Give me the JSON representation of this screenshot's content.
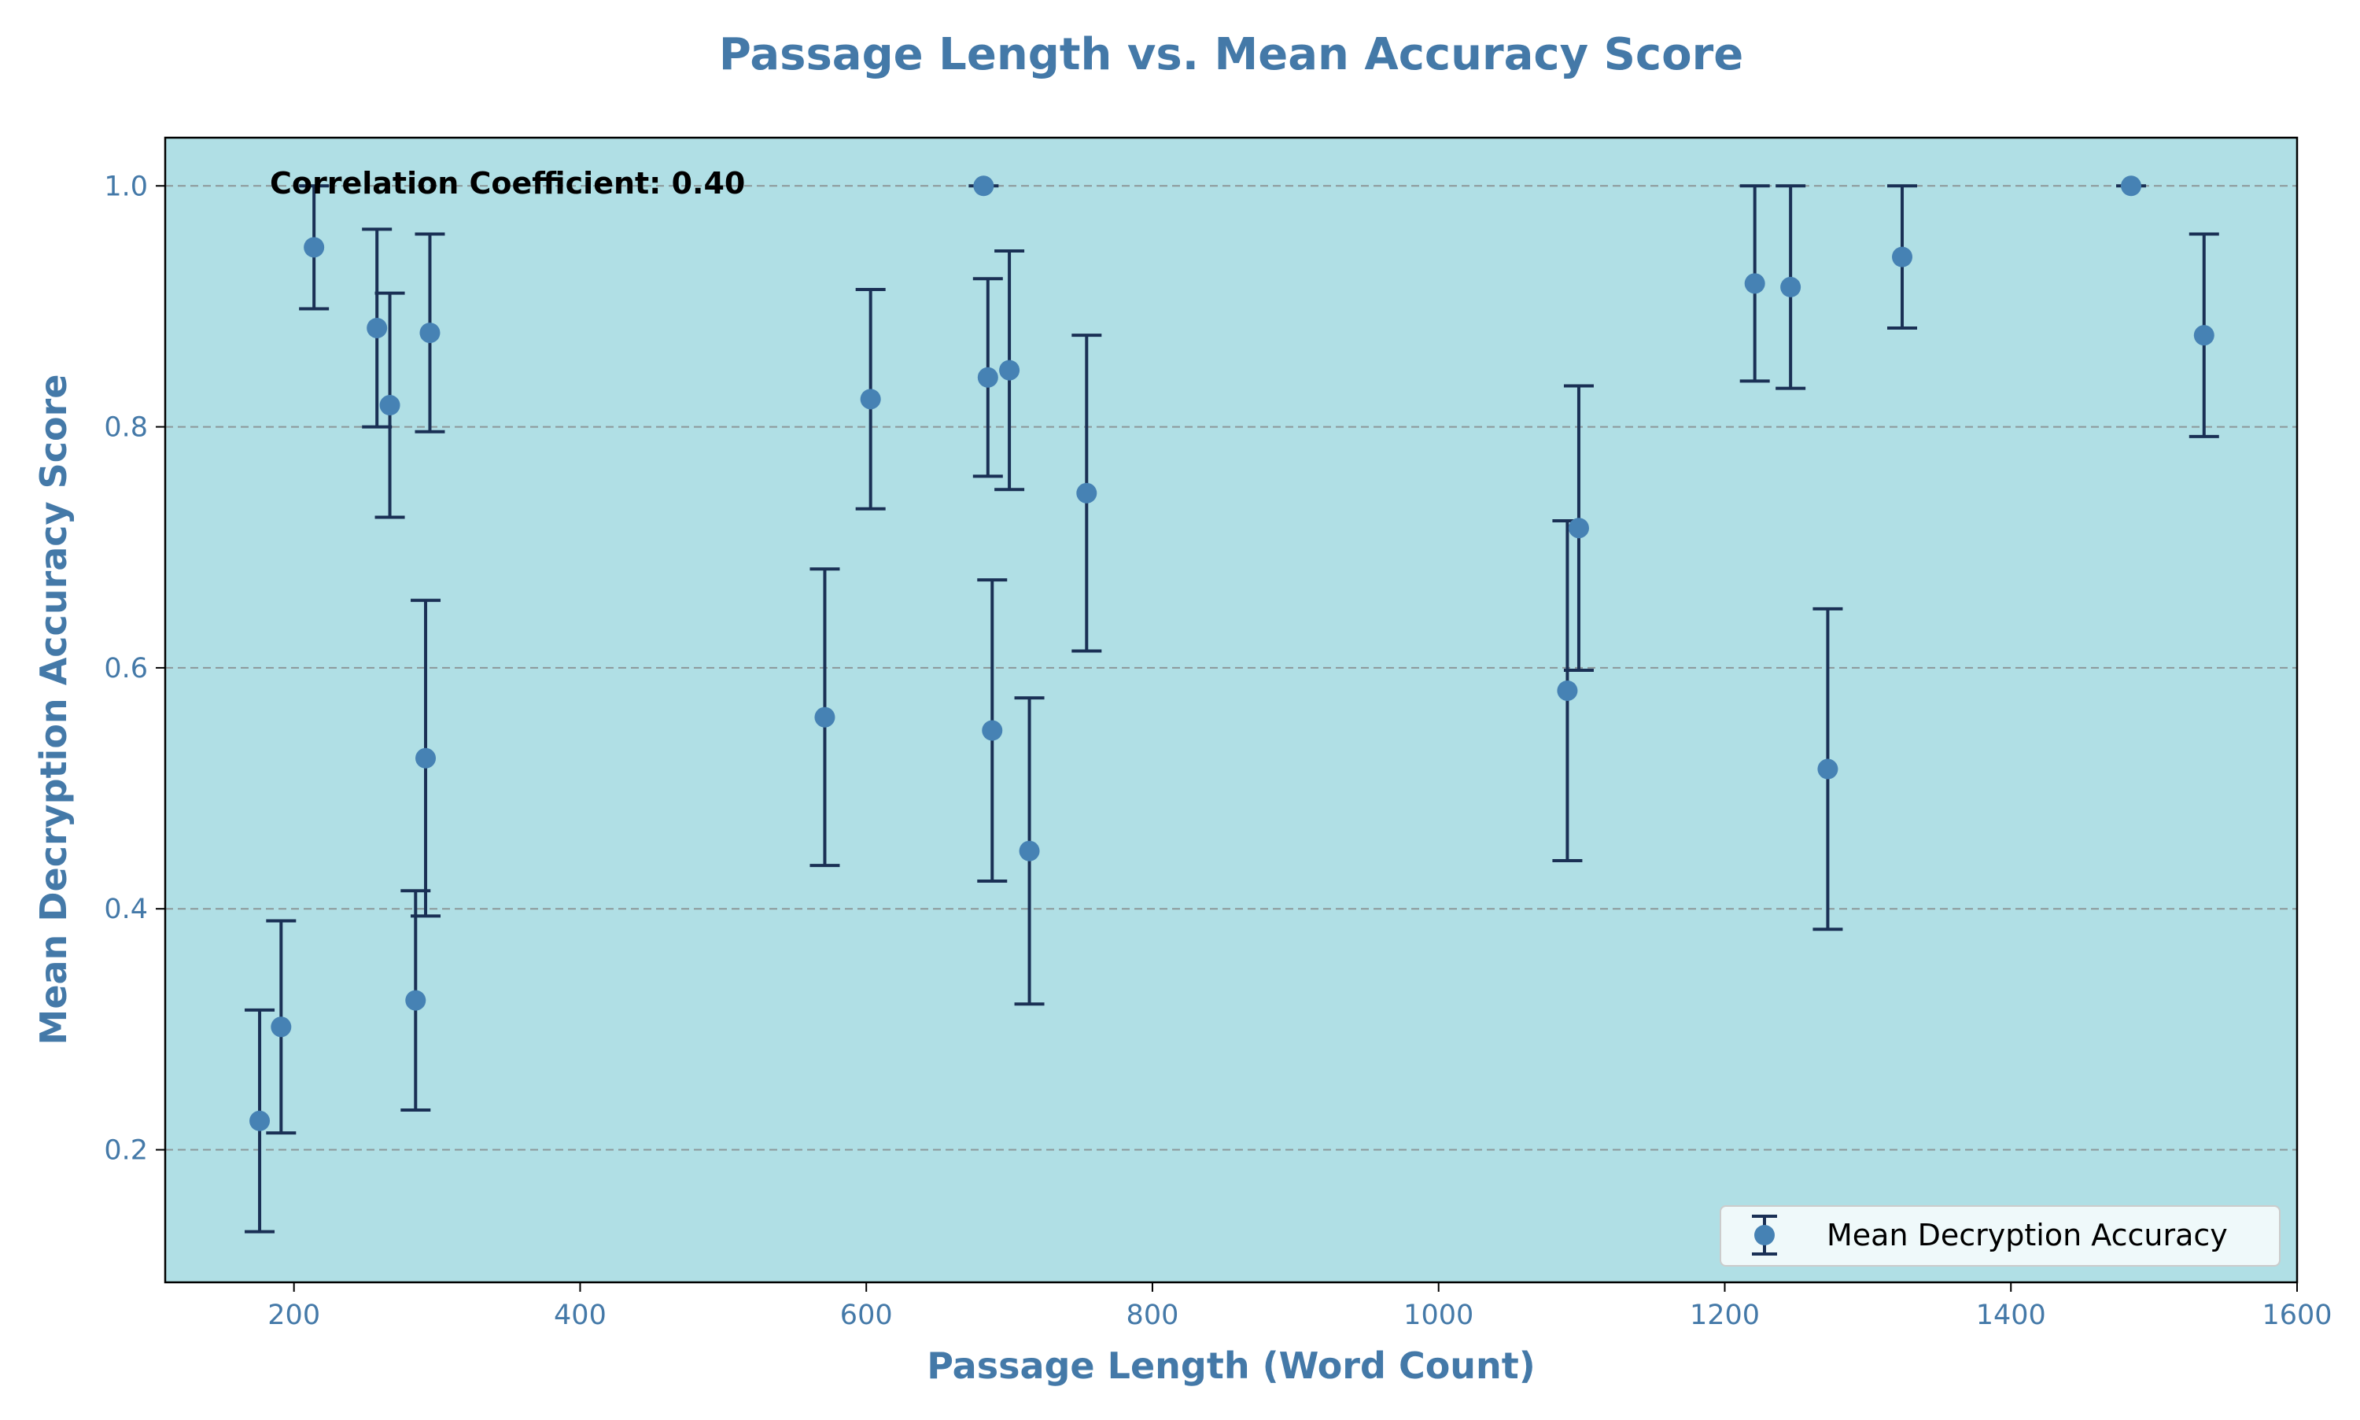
{
  "chart_data": {
    "type": "scatter",
    "title": "Passage Length vs. Mean Accuracy Score",
    "xlabel": "Passage Length (Word Count)",
    "ylabel": "Mean Decryption Accuracy Score",
    "xlim": [
      110,
      1600
    ],
    "ylim": [
      0.09,
      1.04
    ],
    "xticks": [
      200,
      400,
      600,
      800,
      1000,
      1200,
      1400,
      1600
    ],
    "yticks": [
      0.2,
      0.4,
      0.6,
      0.8,
      1.0
    ],
    "xtick_labels": [
      "200",
      "400",
      "600",
      "800",
      "1000",
      "1200",
      "1400",
      "1600"
    ],
    "ytick_labels": [
      "0.2",
      "0.4",
      "0.6",
      "0.8",
      "1.0"
    ],
    "grid": "horizontal dashed",
    "legend_position": "bottom-right",
    "annotation": "Correlation Coefficient: 0.40",
    "series": [
      {
        "name": "Mean Decryption Accuracy",
        "error_bars": true,
        "points": [
          {
            "x": 176,
            "y": 0.224,
            "err": 0.092
          },
          {
            "x": 191,
            "y": 0.302,
            "err": 0.088
          },
          {
            "x": 214,
            "y": 0.949,
            "err": 0.051
          },
          {
            "x": 258,
            "y": 0.882,
            "err": 0.082
          },
          {
            "x": 267,
            "y": 0.818,
            "err": 0.093
          },
          {
            "x": 285,
            "y": 0.324,
            "err": 0.091
          },
          {
            "x": 292,
            "y": 0.525,
            "err": 0.131
          },
          {
            "x": 295,
            "y": 0.878,
            "err": 0.082
          },
          {
            "x": 571,
            "y": 0.559,
            "err": 0.123
          },
          {
            "x": 603,
            "y": 0.823,
            "err": 0.091
          },
          {
            "x": 682,
            "y": 1.0,
            "err": 0.0
          },
          {
            "x": 685,
            "y": 0.841,
            "err": 0.082
          },
          {
            "x": 688,
            "y": 0.548,
            "err": 0.125
          },
          {
            "x": 700,
            "y": 0.847,
            "err": 0.099
          },
          {
            "x": 714,
            "y": 0.448,
            "err": 0.127
          },
          {
            "x": 754,
            "y": 0.745,
            "err": 0.131
          },
          {
            "x": 1090,
            "y": 0.581,
            "err": 0.141
          },
          {
            "x": 1098,
            "y": 0.716,
            "err": 0.118
          },
          {
            "x": 1221,
            "y": 0.919,
            "err": 0.081
          },
          {
            "x": 1246,
            "y": 0.916,
            "err": 0.084
          },
          {
            "x": 1272,
            "y": 0.516,
            "err": 0.133
          },
          {
            "x": 1324,
            "y": 0.941,
            "err": 0.059
          },
          {
            "x": 1484,
            "y": 1.0,
            "err": 0.0
          },
          {
            "x": 1535,
            "y": 0.876,
            "err": 0.084
          }
        ]
      }
    ]
  },
  "colors": {
    "plot_background": "#b0dfe5",
    "marker": "#4682b4",
    "error_bar": "#1a3055",
    "text_accent": "#4479a8",
    "grid": "#808080"
  }
}
